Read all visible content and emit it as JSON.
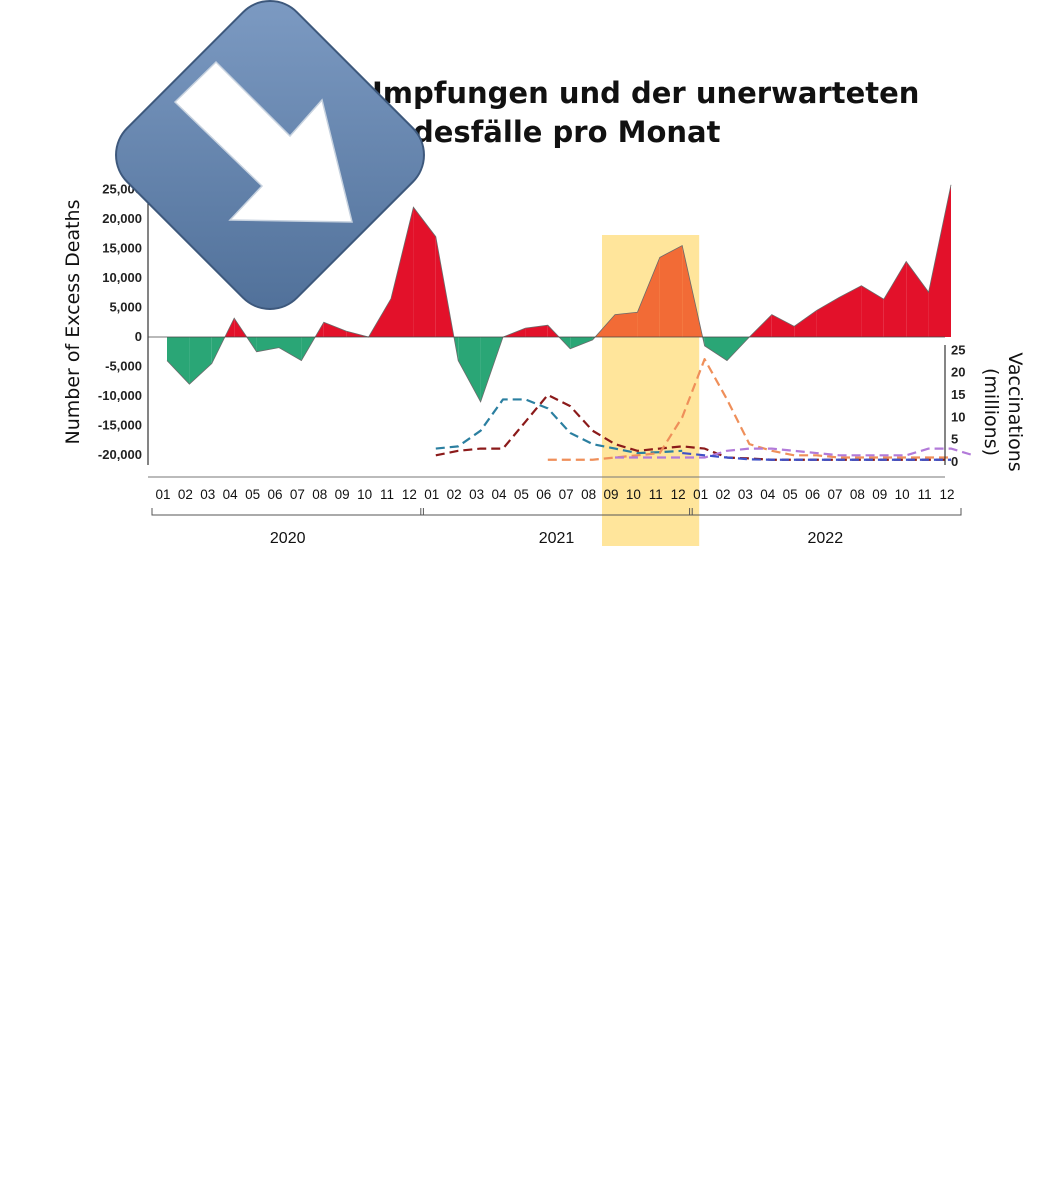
{
  "overlay": {
    "icon": "download-arrow-icon",
    "tile_color": "#6a8db8",
    "arrow_color": "#ffffff"
  },
  "chart_data": {
    "type": "area",
    "title_lines": [
      "Impfungen und der unerwarteten",
      "desfälle pro Monat"
    ],
    "ylabel": "Number of Excess Deaths",
    "y2label_lines": [
      "Vaccinations",
      "(millions)"
    ],
    "ylim": [
      -22000,
      26000
    ],
    "yticks": [
      25000,
      20000,
      15000,
      10000,
      5000,
      0,
      -5000,
      -10000,
      -15000,
      -20000
    ],
    "ytick_labels": [
      "25,000",
      "20,000",
      "15,000",
      "10,000",
      "5,000",
      "0",
      "-5,000",
      "-10,000",
      "-15,000",
      "-20,000"
    ],
    "y2lim": [
      0,
      25
    ],
    "y2ticks": [
      0,
      5,
      10,
      15,
      20,
      25
    ],
    "month_labels": [
      "01",
      "02",
      "03",
      "04",
      "05",
      "06",
      "07",
      "08",
      "09",
      "10",
      "11",
      "12",
      "01",
      "02",
      "03",
      "04",
      "05",
      "06",
      "07",
      "08",
      "09",
      "10",
      "11",
      "12",
      "01",
      "02",
      "03",
      "04",
      "05",
      "06",
      "07",
      "08",
      "09",
      "10",
      "11",
      "12"
    ],
    "years": [
      {
        "label": "2020",
        "start": 0,
        "end": 11
      },
      {
        "label": "2021",
        "start": 12,
        "end": 23
      },
      {
        "label": "2022",
        "start": 24,
        "end": 35
      }
    ],
    "excess_deaths": [
      -4000,
      -8000,
      -4500,
      3200,
      -2500,
      -1800,
      -4000,
      2500,
      1000,
      0,
      6500,
      22000,
      17000,
      -4000,
      -11000,
      0,
      1500,
      2000,
      -2000,
      -500,
      3800,
      4200,
      13500,
      15500,
      -1500,
      -4000,
      0,
      3800,
      1800,
      4500,
      6700,
      8700,
      6400,
      12800,
      7600,
      25800
    ],
    "color_positive": "#e3112a",
    "color_negative": "#2aa676",
    "color_highlight_area": "#f26b36",
    "highlight": {
      "from_index": 20,
      "to_index": 23,
      "color": "#ffe08a"
    },
    "vaccination_series": [
      {
        "color": "#2b7fa0",
        "start_index": 12,
        "values": [
          3,
          3.5,
          7,
          14,
          14,
          12,
          6.5,
          4,
          3,
          2,
          2.2,
          2.5
        ]
      },
      {
        "color": "#8b1a1a",
        "start_index": 12,
        "values": [
          1.5,
          2.5,
          3,
          3,
          9,
          15,
          12.5,
          7,
          4,
          2.5,
          3,
          3.5,
          3,
          1,
          0.8,
          0.5,
          0.5,
          0.5,
          0.5,
          0.5,
          0.5,
          0.5,
          0.5,
          0.5
        ]
      },
      {
        "color": "#ef8f5a",
        "start_index": 17,
        "values": [
          0.5,
          0.5,
          0.5,
          1,
          1.5,
          2,
          10,
          23,
          14,
          4,
          2.5,
          1.5,
          1.5,
          1,
          1,
          1,
          1,
          1,
          1
        ]
      },
      {
        "color": "#b27ad9",
        "start_index": 20,
        "values": [
          1,
          1,
          1,
          1,
          1,
          2.5,
          3,
          3,
          2.5,
          2,
          1.5,
          1.5,
          1.5,
          1.5,
          3,
          3,
          1.5
        ]
      },
      {
        "color": "#3f51c7",
        "start_index": 23,
        "values": [
          2,
          1.5,
          1,
          0.6,
          0.5,
          0.5,
          0.5,
          0.5,
          0.5,
          0.5,
          0.5,
          0.5,
          0.5
        ]
      }
    ]
  }
}
